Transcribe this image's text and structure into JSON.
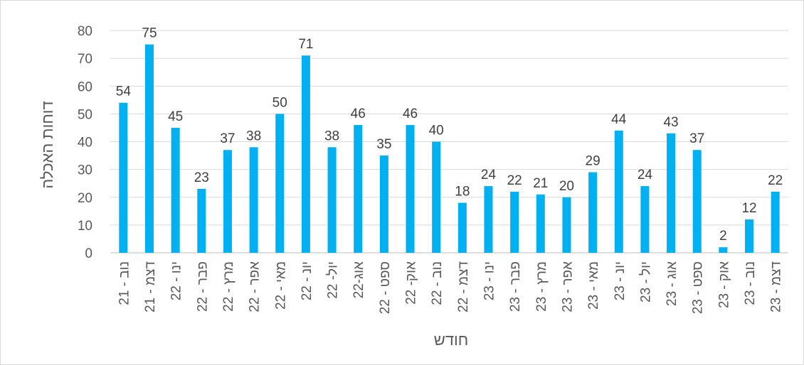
{
  "chart_data": {
    "type": "bar",
    "xlabel": "חודש",
    "ylabel": "דוחות האכלה",
    "ylim": [
      0,
      80
    ],
    "yticks": [
      0,
      10,
      20,
      30,
      40,
      50,
      60,
      70,
      80
    ],
    "grid": true,
    "bar_color": "#00B0F0",
    "categories": [
      "נוב - 21",
      "דצמ - 21",
      "ינו - 22",
      "פבר - 22",
      "מרץ - 22",
      "אפר - 22",
      "מאי - 22",
      "יונ - 22",
      "יול- 22",
      "אוג-22",
      "ספט - 22",
      "אוק- 22",
      "נוב - 22",
      "דצמ - 22",
      "ינו - 23",
      "פבר - 23",
      "מרץ - 23",
      "אפר - 23",
      "מאי - 23",
      "יונ - 23",
      "יול - 23",
      "אוג - 23",
      "ספט - 23",
      "אוק - 23",
      "נוב - 23",
      "דצמ - 23"
    ],
    "values": [
      54,
      75,
      45,
      23,
      37,
      38,
      50,
      71,
      38,
      46,
      35,
      46,
      40,
      18,
      24,
      22,
      21,
      20,
      29,
      44,
      24,
      43,
      37,
      2,
      12,
      22
    ]
  }
}
